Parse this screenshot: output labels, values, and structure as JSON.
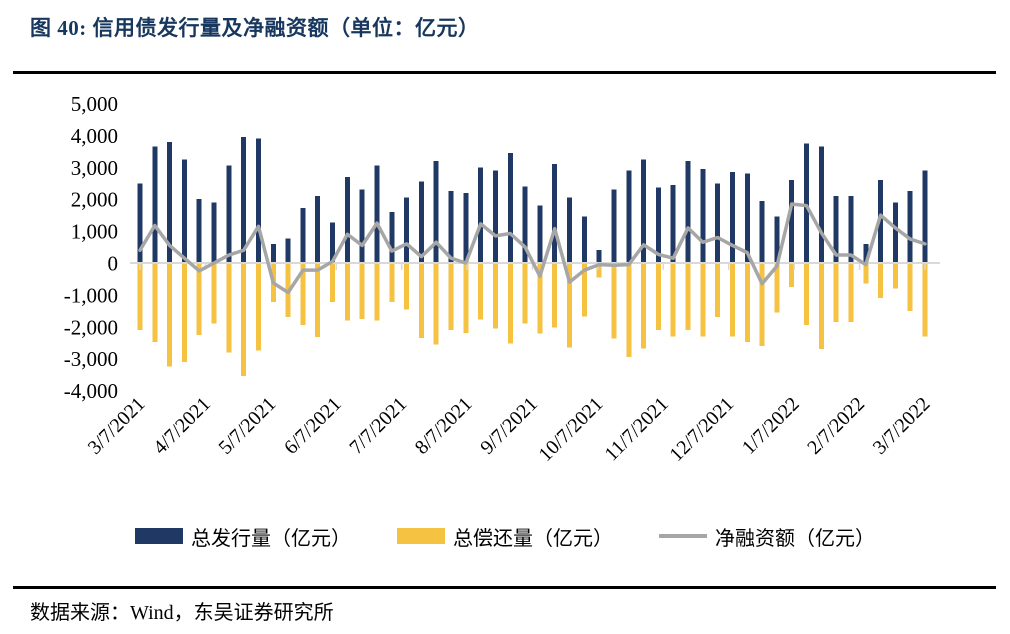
{
  "figure": {
    "title": "图 40:  信用债发行量及净融资额（单位：亿元）",
    "source": "数据来源：Wind，东吴证券研究所"
  },
  "chart_data": {
    "type": "bar",
    "subtype": "weekly bar + line combo",
    "unit": "亿元",
    "title": "信用债发行量及净融资额",
    "x_tick_labels": [
      "3/7/2021",
      "4/7/2021",
      "5/7/2021",
      "6/7/2021",
      "7/7/2021",
      "8/7/2021",
      "9/7/2021",
      "10/7/2021",
      "11/7/2021",
      "12/7/2021",
      "1/7/2022",
      "2/7/2022",
      "3/7/2022"
    ],
    "y_ticks": [
      5000,
      4000,
      3000,
      2000,
      1000,
      0,
      -1000,
      -2000,
      -3000,
      -4000
    ],
    "ylim": [
      -4000,
      5000
    ],
    "grid": false,
    "legend_position": "bottom",
    "axis_line_color": "#D9D9D9",
    "series": [
      {
        "name": "总发行量（亿元）",
        "type": "bar",
        "color": "#1F3864",
        "values": [
          2500,
          3650,
          3800,
          3250,
          2000,
          1900,
          3050,
          3950,
          3900,
          600,
          775,
          1725,
          2100,
          1275,
          2700,
          2300,
          3050,
          1600,
          2050,
          2550,
          3200,
          2250,
          2200,
          3000,
          2900,
          3450,
          2400,
          1800,
          3100,
          2050,
          1450,
          400,
          2300,
          2900,
          3250,
          2370,
          2450,
          3200,
          2950,
          2500,
          2850,
          2800,
          1950,
          1450,
          2600,
          3750,
          3650,
          2100,
          2100,
          600,
          2600,
          1900,
          2250,
          2900
        ]
      },
      {
        "name": "总偿还量（亿元）",
        "type": "bar",
        "color": "#F5C242",
        "values": [
          -2100,
          -2475,
          -3250,
          -3100,
          -2250,
          -1900,
          -2800,
          -3550,
          -2750,
          -1225,
          -1700,
          -1950,
          -2325,
          -1225,
          -1800,
          -1750,
          -1800,
          -1225,
          -1450,
          -2350,
          -2550,
          -2100,
          -2200,
          -1775,
          -2050,
          -2525,
          -1900,
          -2215,
          -2025,
          -2650,
          -1675,
          -450,
          -2370,
          -2950,
          -2680,
          -2100,
          -2300,
          -2100,
          -2300,
          -1700,
          -2300,
          -2475,
          -2600,
          -1550,
          -750,
          -1950,
          -2700,
          -1850,
          -1850,
          -650,
          -1100,
          -800,
          -1500,
          -2300
        ]
      },
      {
        "name": "净融资额（亿元）",
        "type": "line",
        "color": "#A6A6A6",
        "values": [
          400,
          1175,
          550,
          150,
          -250,
          0,
          250,
          400,
          1150,
          -625,
          -925,
          -225,
          -225,
          50,
          900,
          550,
          1250,
          375,
          600,
          200,
          650,
          150,
          0,
          1225,
          850,
          925,
          500,
          -415,
          1075,
          -600,
          -225,
          -50,
          -70,
          -50,
          570,
          270,
          150,
          1100,
          650,
          800,
          550,
          325,
          -650,
          -100,
          1850,
          1800,
          950,
          250,
          250,
          -50,
          1500,
          1100,
          750,
          600
        ]
      }
    ]
  }
}
